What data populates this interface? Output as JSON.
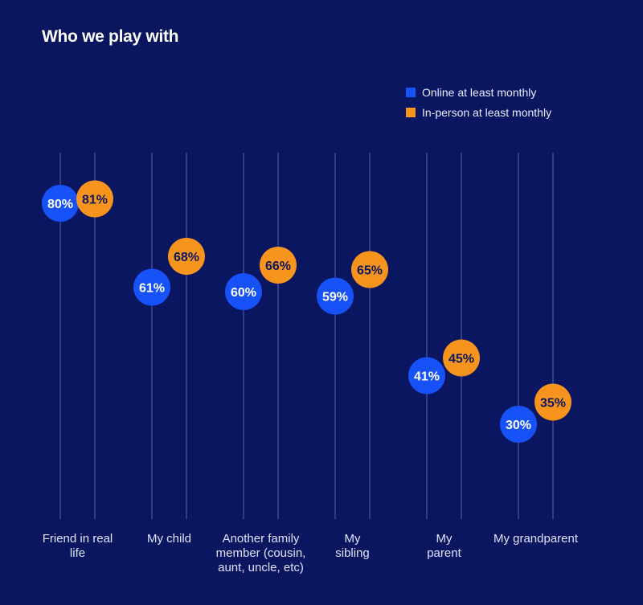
{
  "chart_data": {
    "type": "scatter",
    "title": "Who we play with",
    "categories": [
      "Friend in real life",
      "My child",
      "Another family member (cousin, aunt, uncle, etc)",
      "My sibling",
      "My parent",
      "My grandparent"
    ],
    "series": [
      {
        "name": "Online at least monthly",
        "color": "#1652f7",
        "values": [
          80,
          61,
          60,
          59,
          41,
          30
        ]
      },
      {
        "name": "In-person at least monthly",
        "color": "#f7941d",
        "values": [
          81,
          68,
          66,
          65,
          45,
          35
        ]
      }
    ],
    "value_format": "%",
    "legend": "top-right",
    "grid": false
  }
}
